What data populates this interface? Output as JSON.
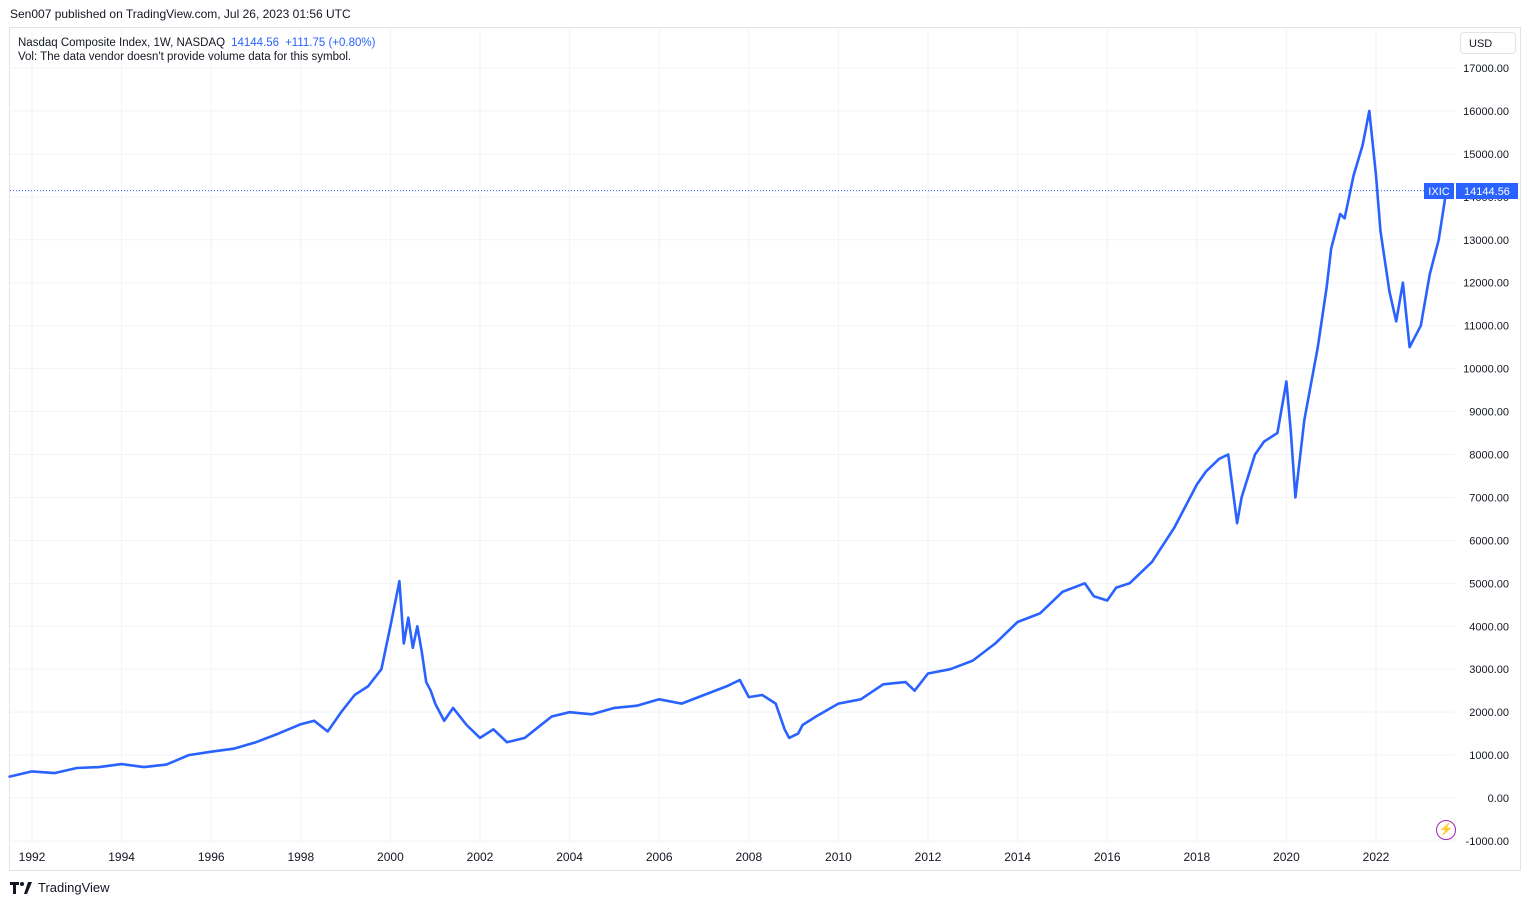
{
  "header": {
    "publish_line": "Sen007 published on TradingView.com, Jul 26, 2023 01:56 UTC"
  },
  "legend": {
    "symbol_line": "Nasdaq Composite Index, 1W, NASDAQ",
    "last_value": "14144.56",
    "change": "+111.75 (+0.80%)",
    "volume_note": "Vol: The data vendor doesn't provide volume data for this symbol."
  },
  "toolbar": {
    "currency": "USD"
  },
  "price_label": {
    "ticker": "IXIC",
    "value": "14144.56"
  },
  "footer": {
    "brand": "TradingView"
  },
  "colors": {
    "line": "#2962ff",
    "grid": "#f0f3fa",
    "text": "#131722",
    "bolt": "#9c27b0"
  },
  "chart_data": {
    "type": "line",
    "title": "Nasdaq Composite Index, 1W, NASDAQ",
    "xlabel": "",
    "ylabel": "USD",
    "x_ticks": [
      "1992",
      "1994",
      "1996",
      "1998",
      "2000",
      "2002",
      "2004",
      "2006",
      "2008",
      "2010",
      "2012",
      "2014",
      "2016",
      "2018",
      "2020",
      "2022"
    ],
    "y_ticks": [
      "17000.00",
      "16000.00",
      "15000.00",
      "14000.00",
      "13000.00",
      "12000.00",
      "11000.00",
      "10000.00",
      "9000.00",
      "8000.00",
      "7000.00",
      "6000.00",
      "5000.00",
      "4000.00",
      "3000.00",
      "2000.00",
      "1000.00",
      "0.00",
      "-1000.00"
    ],
    "xlim": [
      1991.5,
      2024.2
    ],
    "ylim": [
      -1000,
      17000
    ],
    "last_value": 14144.56,
    "grid": true,
    "series": [
      {
        "name": "IXIC",
        "x": [
          1991.5,
          1992.0,
          1992.5,
          1993.0,
          1993.5,
          1994.0,
          1994.5,
          1995.0,
          1995.5,
          1996.0,
          1996.5,
          1997.0,
          1997.5,
          1998.0,
          1998.3,
          1998.6,
          1998.9,
          1999.2,
          1999.5,
          1999.8,
          2000.0,
          2000.2,
          2000.3,
          2000.4,
          2000.5,
          2000.6,
          2000.7,
          2000.8,
          2000.9,
          2001.0,
          2001.2,
          2001.4,
          2001.7,
          2002.0,
          2002.3,
          2002.6,
          2002.8,
          2003.0,
          2003.3,
          2003.6,
          2004.0,
          2004.5,
          2005.0,
          2005.5,
          2006.0,
          2006.5,
          2007.0,
          2007.5,
          2007.8,
          2008.0,
          2008.3,
          2008.6,
          2008.8,
          2008.9,
          2009.1,
          2009.2,
          2009.5,
          2010.0,
          2010.5,
          2011.0,
          2011.5,
          2011.7,
          2012.0,
          2012.5,
          2013.0,
          2013.5,
          2014.0,
          2014.5,
          2015.0,
          2015.5,
          2015.7,
          2016.0,
          2016.2,
          2016.5,
          2017.0,
          2017.5,
          2018.0,
          2018.2,
          2018.5,
          2018.7,
          2018.9,
          2019.0,
          2019.3,
          2019.5,
          2019.8,
          2020.0,
          2020.1,
          2020.2,
          2020.4,
          2020.7,
          2020.9,
          2021.0,
          2021.2,
          2021.3,
          2021.5,
          2021.7,
          2021.85,
          2022.0,
          2022.1,
          2022.3,
          2022.45,
          2022.6,
          2022.75,
          2022.9,
          2023.0,
          2023.2,
          2023.4,
          2023.57
        ],
        "values": [
          500,
          620,
          580,
          700,
          720,
          790,
          720,
          780,
          1000,
          1080,
          1150,
          1300,
          1500,
          1720,
          1800,
          1550,
          2000,
          2400,
          2600,
          3000,
          4000,
          5050,
          3600,
          4200,
          3500,
          4000,
          3400,
          2700,
          2500,
          2200,
          1800,
          2100,
          1700,
          1400,
          1600,
          1300,
          1350,
          1400,
          1650,
          1900,
          2000,
          1950,
          2100,
          2150,
          2300,
          2200,
          2400,
          2600,
          2750,
          2350,
          2400,
          2200,
          1600,
          1400,
          1500,
          1700,
          1900,
          2200,
          2300,
          2650,
          2700,
          2500,
          2900,
          3000,
          3200,
          3600,
          4100,
          4300,
          4800,
          5000,
          4700,
          4600,
          4900,
          5000,
          5500,
          6300,
          7300,
          7600,
          7900,
          8000,
          6400,
          7000,
          8000,
          8300,
          8500,
          9700,
          8500,
          7000,
          8800,
          10500,
          11900,
          12800,
          13600,
          13500,
          14500,
          15200,
          16000,
          14500,
          13200,
          11800,
          11100,
          12000,
          10500,
          10800,
          11000,
          12200,
          13000,
          14144.56
        ]
      }
    ]
  }
}
